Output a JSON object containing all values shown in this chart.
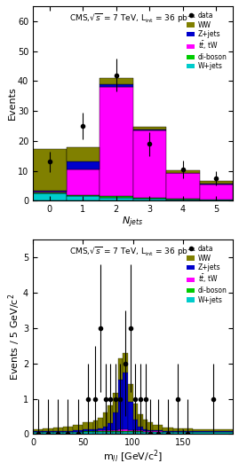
{
  "top_plot": {
    "ylim": [
      0,
      65
    ],
    "xlim": [
      -0.5,
      5.5
    ],
    "bins": [
      0,
      1,
      2,
      3,
      4,
      5
    ],
    "WW": [
      14.0,
      5.0,
      2.0,
      1.0,
      0.8,
      0.8
    ],
    "Zjets": [
      0.3,
      2.5,
      1.0,
      0.3,
      0.2,
      0.2
    ],
    "ttW": [
      0.2,
      8.5,
      36.5,
      22.5,
      8.5,
      5.0
    ],
    "diboson": [
      0.3,
      0.5,
      0.5,
      0.3,
      0.2,
      0.2
    ],
    "Wjets": [
      2.5,
      1.5,
      1.0,
      0.7,
      0.5,
      0.3
    ],
    "data_x": [
      0,
      1,
      2,
      3,
      4,
      5
    ],
    "data_y": [
      13.0,
      25.0,
      42.0,
      19.0,
      10.5,
      7.5
    ],
    "data_yerr_lo": [
      3.5,
      4.5,
      5.5,
      4.0,
      3.0,
      2.5
    ],
    "data_yerr_hi": [
      3.5,
      4.5,
      5.5,
      4.0,
      3.0,
      2.5
    ],
    "color_WW": "#808000",
    "color_Zjets": "#0000cc",
    "color_ttW": "#ff00ff",
    "color_diboson": "#00cc00",
    "color_Wjets": "#00cccc"
  },
  "bot_plot": {
    "ylim": [
      0,
      5.5
    ],
    "xlim": [
      0,
      200
    ],
    "bin_edges": [
      0,
      10,
      20,
      30,
      40,
      50,
      60,
      65,
      70,
      75,
      80,
      85,
      90,
      95,
      100,
      105,
      110,
      115,
      120,
      130,
      140,
      150,
      160,
      200
    ],
    "WW": [
      0.05,
      0.08,
      0.1,
      0.12,
      0.15,
      0.2,
      0.25,
      0.3,
      0.4,
      0.5,
      0.55,
      0.6,
      0.55,
      0.5,
      0.45,
      0.35,
      0.28,
      0.22,
      0.15,
      0.1,
      0.08,
      0.06,
      0.04
    ],
    "Zjets": [
      0.02,
      0.02,
      0.02,
      0.02,
      0.03,
      0.05,
      0.05,
      0.05,
      0.1,
      0.2,
      0.5,
      1.4,
      1.6,
      0.8,
      0.3,
      0.1,
      0.05,
      0.03,
      0.02,
      0.02,
      0.02,
      0.02,
      0.02
    ],
    "ttW": [
      0.0,
      0.0,
      0.0,
      0.0,
      0.0,
      0.0,
      0.0,
      0.02,
      0.02,
      0.02,
      0.02,
      0.05,
      0.05,
      0.02,
      0.02,
      0.02,
      0.02,
      0.02,
      0.02,
      0.0,
      0.0,
      0.0,
      0.0
    ],
    "diboson": [
      0.02,
      0.02,
      0.02,
      0.02,
      0.02,
      0.02,
      0.02,
      0.02,
      0.02,
      0.02,
      0.02,
      0.02,
      0.02,
      0.02,
      0.02,
      0.02,
      0.02,
      0.02,
      0.02,
      0.02,
      0.02,
      0.02,
      0.02
    ],
    "Wjets": [
      0.05,
      0.05,
      0.05,
      0.05,
      0.05,
      0.07,
      0.07,
      0.07,
      0.07,
      0.07,
      0.07,
      0.07,
      0.07,
      0.07,
      0.07,
      0.07,
      0.05,
      0.05,
      0.05,
      0.05,
      0.05,
      0.05,
      0.05
    ],
    "data_x": [
      5,
      15,
      25,
      35,
      45,
      55,
      62.5,
      67.5,
      72.5,
      77.5,
      82.5,
      87.5,
      92.5,
      97.5,
      102.5,
      107.5,
      112.5,
      117.5,
      125,
      135,
      145,
      155,
      180
    ],
    "data_y": [
      0.0,
      0.0,
      0.0,
      0.0,
      0.0,
      1.0,
      1.0,
      3.0,
      1.0,
      1.0,
      1.0,
      1.0,
      2.0,
      3.0,
      1.0,
      1.0,
      1.0,
      0.0,
      0.0,
      0.0,
      1.0,
      0.0,
      1.0
    ],
    "data_yerr": [
      1.0,
      1.0,
      1.0,
      1.0,
      1.0,
      1.0,
      1.5,
      1.8,
      1.0,
      1.0,
      1.0,
      1.0,
      1.5,
      1.8,
      1.0,
      1.0,
      1.0,
      1.0,
      1.0,
      1.0,
      1.0,
      1.0,
      1.0
    ],
    "color_WW": "#808000",
    "color_Zjets": "#0000cc",
    "color_ttW": "#ff00ff",
    "color_diboson": "#00cc00",
    "color_Wjets": "#00cccc"
  }
}
